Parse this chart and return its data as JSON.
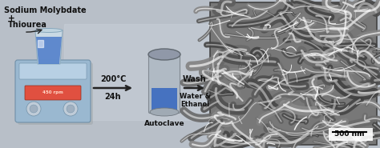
{
  "bg_color": "#b8bfc8",
  "text_labels": {
    "sodium_molybdate": "Sodium Molybdate",
    "plus": "+",
    "thiourea": "Thiourea",
    "temp": "200°C",
    "time": "24h",
    "autoclave": "Autoclave",
    "wash": "Wash",
    "water_ethanol": "Water &\nEthanol",
    "scale_bar": "500 nm"
  },
  "arrow_color": "#222222",
  "text_color": "#111111",
  "hotplate_body_color": "#9ab8d0",
  "hotplate_face_color": "#b8d0e4",
  "hotplate_display_color": "#e05040",
  "beaker_liquid_color": "#4878c8",
  "autoclave_metal_top": "#9098a8",
  "autoclave_metal_body": "#b0bac4",
  "autoclave_liquid_color": "#3868c0",
  "scale_bar_bg": "#ffffff",
  "figsize": [
    4.74,
    1.85
  ],
  "dpi": 100
}
